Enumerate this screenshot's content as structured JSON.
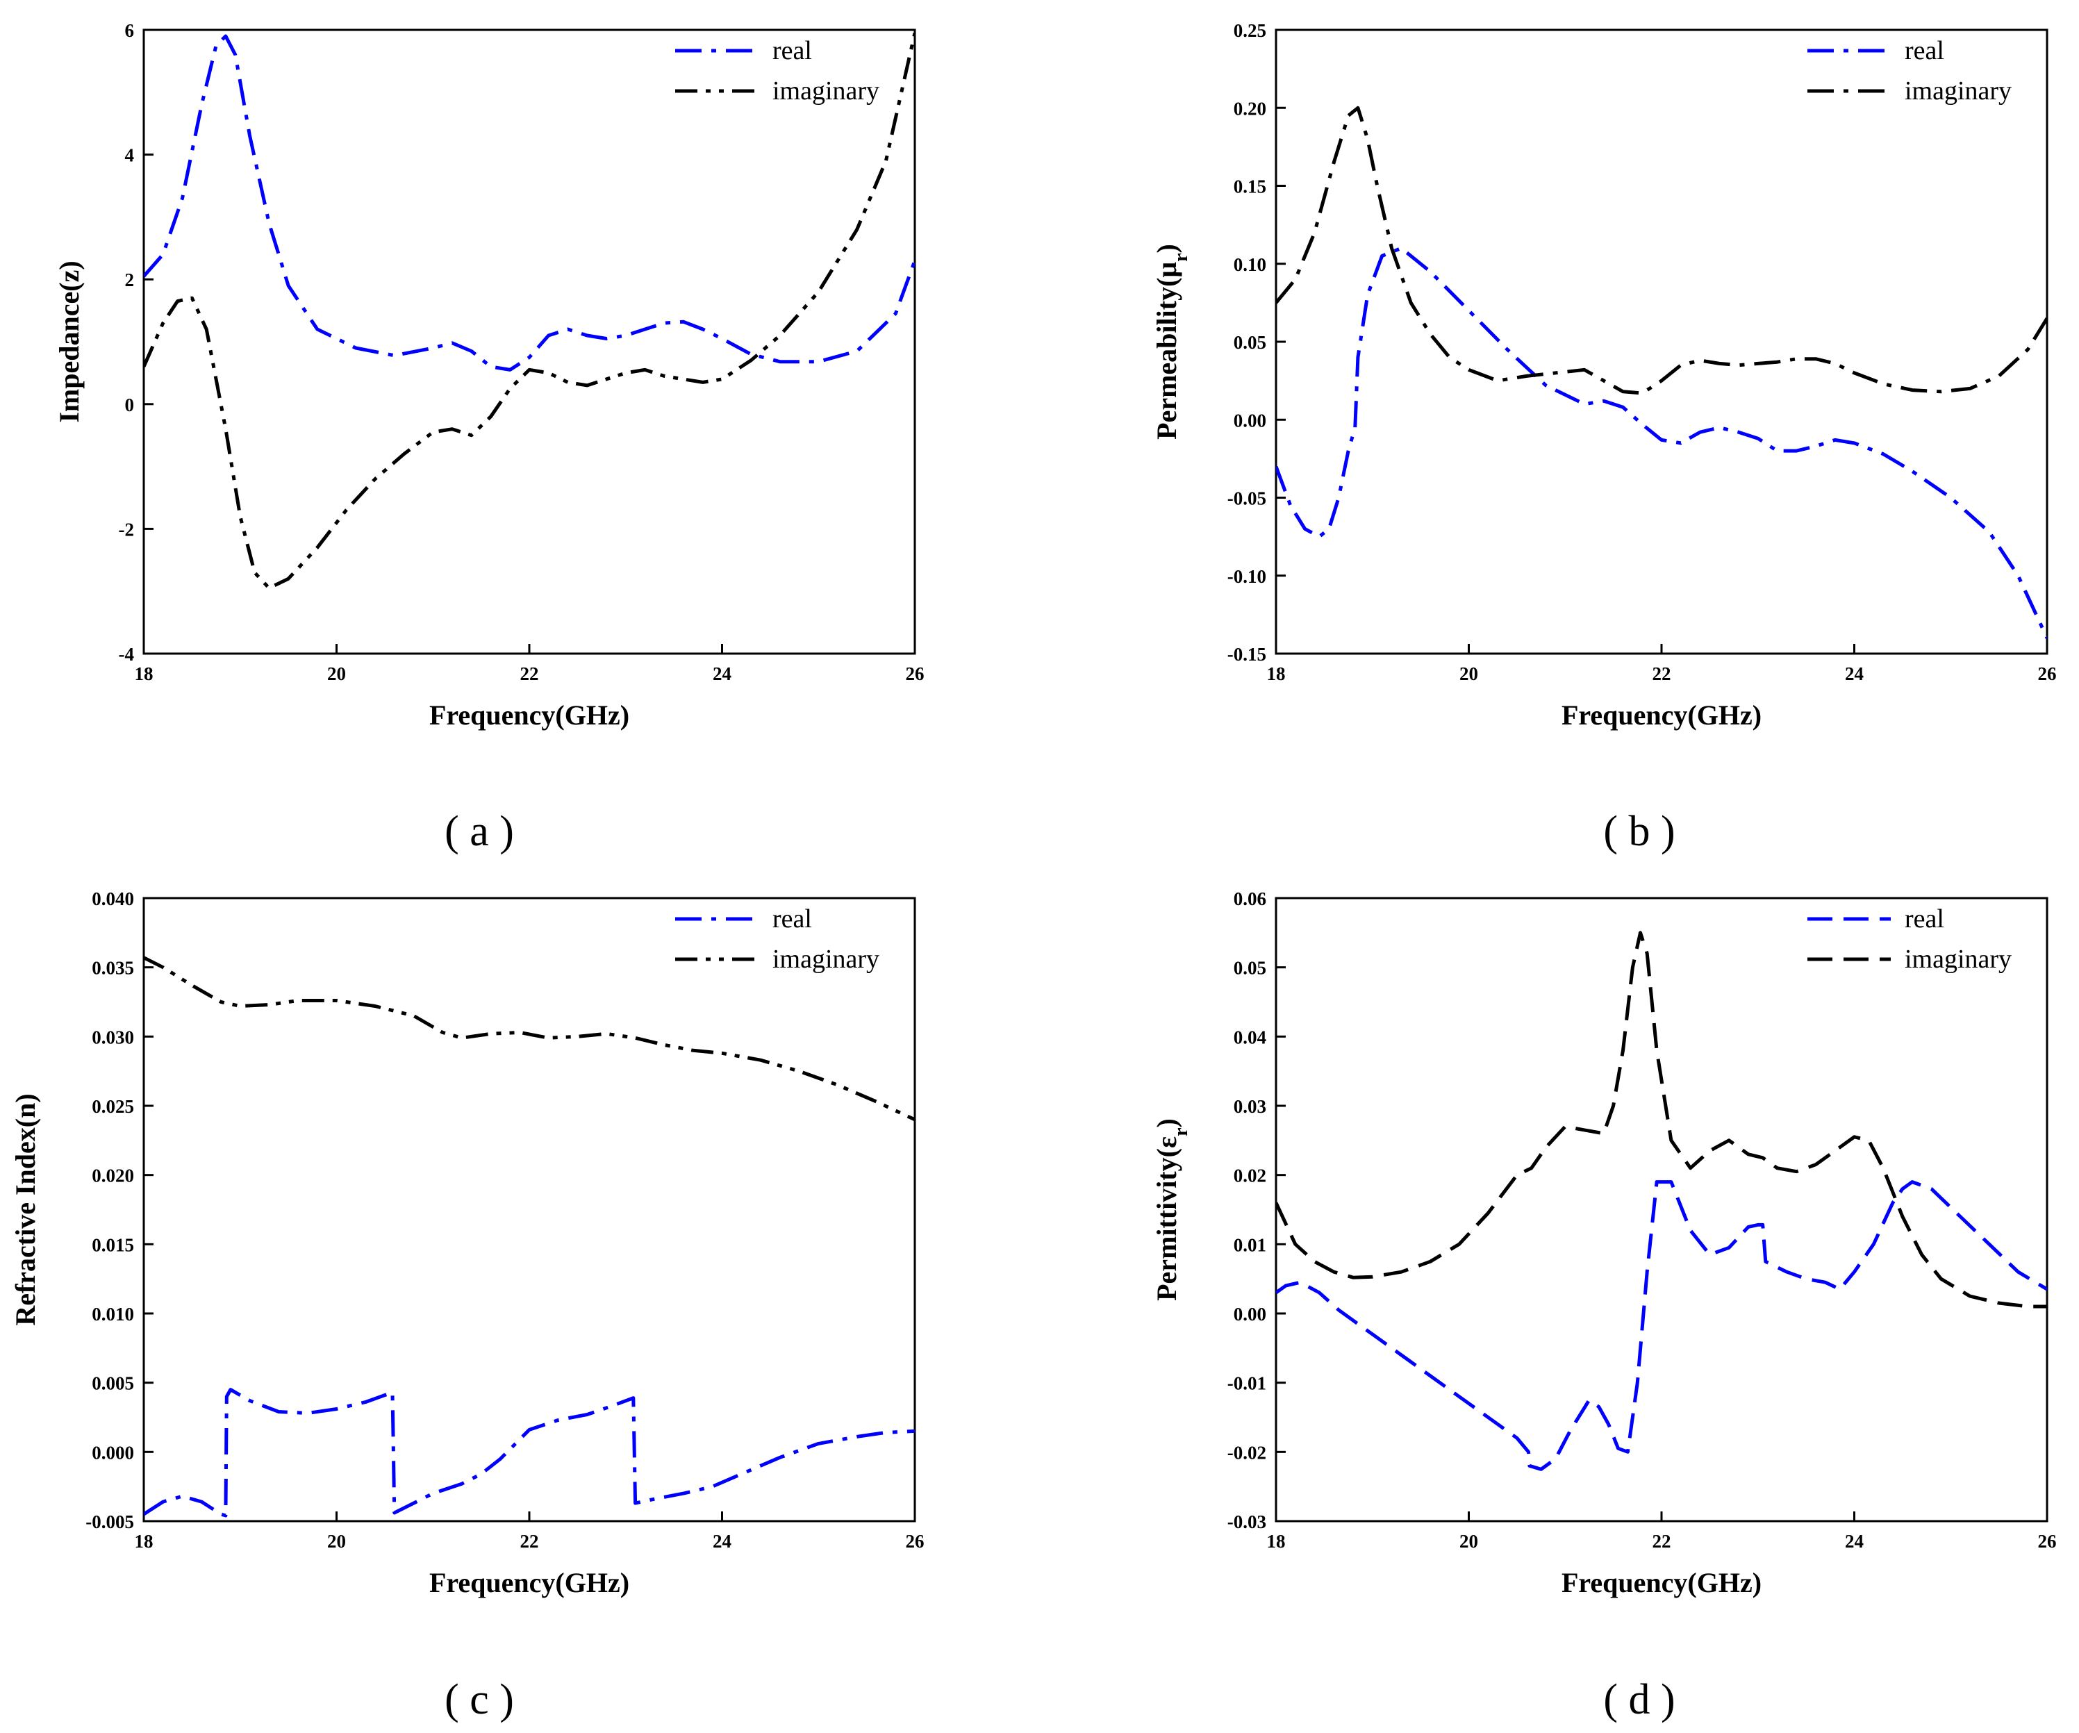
{
  "chart_data": [
    {
      "type": "line",
      "panel": "a",
      "caption": "( a )",
      "xlabel": "Frequency(GHz)",
      "ylabel": "Impedance(z)",
      "xlim": [
        18,
        26
      ],
      "ylim": [
        -4,
        6
      ],
      "xticks": [
        18,
        20,
        22,
        24,
        26
      ],
      "xtick_labels": [
        "18",
        "20",
        "22",
        "24",
        "26"
      ],
      "yticks": [
        -4,
        -2,
        0,
        2,
        4,
        6
      ],
      "ytick_labels": [
        "-4",
        "-2",
        "0",
        "2",
        "4",
        "6"
      ],
      "legend": "top-right",
      "series": [
        {
          "name": "real",
          "color": "#0000ff",
          "dash": "dashdot",
          "x": [
            18.0,
            18.2,
            18.4,
            18.6,
            18.75,
            18.85,
            18.95,
            19.1,
            19.3,
            19.5,
            19.8,
            20.2,
            20.6,
            21.0,
            21.2,
            21.4,
            21.6,
            21.8,
            22.0,
            22.2,
            22.4,
            22.6,
            22.8,
            23.0,
            23.2,
            23.4,
            23.6,
            23.8,
            24.0,
            24.3,
            24.6,
            25.0,
            25.4,
            25.8,
            26.0
          ],
          "y": [
            2.05,
            2.4,
            3.3,
            4.8,
            5.75,
            5.9,
            5.6,
            4.3,
            2.9,
            1.9,
            1.2,
            0.9,
            0.78,
            0.9,
            0.98,
            0.85,
            0.6,
            0.55,
            0.75,
            1.1,
            1.2,
            1.1,
            1.05,
            1.1,
            1.2,
            1.3,
            1.32,
            1.2,
            1.05,
            0.8,
            0.68,
            0.68,
            0.85,
            1.45,
            2.3
          ]
        },
        {
          "name": "imaginary",
          "color": "#000000",
          "dash": "dashdotdot",
          "x": [
            18.0,
            18.2,
            18.35,
            18.5,
            18.65,
            18.85,
            19.0,
            19.15,
            19.3,
            19.5,
            19.8,
            20.1,
            20.4,
            20.7,
            21.0,
            21.2,
            21.4,
            21.6,
            21.8,
            22.0,
            22.2,
            22.4,
            22.6,
            22.8,
            23.0,
            23.2,
            23.4,
            23.6,
            23.8,
            24.0,
            24.3,
            24.6,
            25.0,
            25.4,
            25.7,
            26.0
          ],
          "y": [
            0.6,
            1.3,
            1.65,
            1.7,
            1.2,
            -0.4,
            -1.8,
            -2.7,
            -2.95,
            -2.8,
            -2.3,
            -1.7,
            -1.2,
            -0.8,
            -0.45,
            -0.4,
            -0.5,
            -0.2,
            0.25,
            0.55,
            0.5,
            0.35,
            0.3,
            0.4,
            0.5,
            0.55,
            0.45,
            0.4,
            0.35,
            0.4,
            0.7,
            1.1,
            1.8,
            2.8,
            3.9,
            5.95
          ]
        }
      ]
    },
    {
      "type": "line",
      "panel": "b",
      "caption": "( b )",
      "xlabel": "Frequency(GHz)",
      "ylabel": "Permeability(μ",
      "ylabel_sub": "r",
      "ylabel_close": ")",
      "xlim": [
        18,
        26
      ],
      "ylim": [
        -0.15,
        0.25
      ],
      "xticks": [
        18,
        20,
        22,
        24,
        26
      ],
      "xtick_labels": [
        "18",
        "20",
        "22",
        "24",
        "26"
      ],
      "yticks": [
        -0.15,
        -0.1,
        -0.05,
        0.0,
        0.05,
        0.1,
        0.15,
        0.2,
        0.25
      ],
      "ytick_labels": [
        "-0.15",
        "-0.10",
        "-0.05",
        "0.00",
        "0.05",
        "0.10",
        "0.15",
        "0.20",
        "0.25"
      ],
      "legend": "top-right",
      "series": [
        {
          "name": "real",
          "color": "#0000ff",
          "dash": "dashdot",
          "x": [
            18.0,
            18.15,
            18.3,
            18.45,
            18.55,
            18.65,
            18.75,
            18.82,
            18.85,
            18.95,
            19.1,
            19.3,
            19.6,
            20.0,
            20.4,
            20.8,
            21.2,
            21.4,
            21.6,
            21.8,
            22.0,
            22.2,
            22.4,
            22.6,
            22.8,
            23.0,
            23.2,
            23.4,
            23.6,
            23.8,
            24.0,
            24.3,
            24.6,
            25.0,
            25.4,
            25.7,
            26.0
          ],
          "y": [
            -0.03,
            -0.055,
            -0.07,
            -0.075,
            -0.07,
            -0.05,
            -0.02,
            -0.005,
            0.04,
            0.08,
            0.105,
            0.11,
            0.095,
            0.07,
            0.045,
            0.022,
            0.01,
            0.012,
            0.008,
            -0.003,
            -0.013,
            -0.015,
            -0.008,
            -0.005,
            -0.008,
            -0.012,
            -0.02,
            -0.02,
            -0.017,
            -0.013,
            -0.015,
            -0.022,
            -0.033,
            -0.05,
            -0.072,
            -0.1,
            -0.14
          ]
        },
        {
          "name": "imaginary",
          "color": "#000000",
          "dash": "dashdot",
          "x": [
            18.0,
            18.2,
            18.4,
            18.6,
            18.75,
            18.85,
            18.95,
            19.05,
            19.2,
            19.4,
            19.6,
            19.8,
            20.0,
            20.3,
            20.6,
            20.9,
            21.2,
            21.4,
            21.6,
            21.8,
            22.0,
            22.2,
            22.4,
            22.6,
            22.8,
            23.0,
            23.2,
            23.4,
            23.6,
            23.8,
            24.0,
            24.3,
            24.6,
            24.9,
            25.2,
            25.5,
            25.8,
            26.0
          ],
          "y": [
            0.075,
            0.09,
            0.12,
            0.165,
            0.195,
            0.2,
            0.18,
            0.15,
            0.11,
            0.075,
            0.055,
            0.04,
            0.032,
            0.025,
            0.028,
            0.03,
            0.032,
            0.025,
            0.018,
            0.017,
            0.025,
            0.035,
            0.038,
            0.036,
            0.035,
            0.036,
            0.037,
            0.039,
            0.039,
            0.036,
            0.03,
            0.023,
            0.019,
            0.018,
            0.02,
            0.028,
            0.045,
            0.065
          ]
        }
      ]
    },
    {
      "type": "line",
      "panel": "c",
      "caption": "( c )",
      "xlabel": "Frequency(GHz)",
      "ylabel": "Refractive Index(n)",
      "xlim": [
        18,
        26
      ],
      "ylim": [
        -0.005,
        0.04
      ],
      "xticks": [
        18,
        20,
        22,
        24,
        26
      ],
      "xtick_labels": [
        "18",
        "20",
        "22",
        "24",
        "26"
      ],
      "yticks": [
        -0.005,
        0.0,
        0.005,
        0.01,
        0.015,
        0.02,
        0.025,
        0.03,
        0.035,
        0.04
      ],
      "ytick_labels": [
        "-0.005",
        "0.000",
        "0.005",
        "0.010",
        "0.015",
        "0.020",
        "0.025",
        "0.030",
        "0.035",
        "0.040"
      ],
      "legend": "top-right",
      "series": [
        {
          "name": "real",
          "color": "#0000ff",
          "dash": "dashdot",
          "x": [
            18.0,
            18.2,
            18.4,
            18.6,
            18.8,
            18.85,
            18.86,
            18.9,
            19.1,
            19.4,
            19.7,
            20.0,
            20.3,
            20.58,
            20.6,
            20.8,
            21.0,
            21.3,
            21.5,
            21.7,
            22.0,
            22.3,
            22.6,
            22.85,
            23.08,
            23.1,
            23.3,
            23.6,
            23.9,
            24.2,
            24.6,
            25.0,
            25.4,
            25.7,
            26.0
          ],
          "y": [
            -0.0045,
            -0.0036,
            -0.0032,
            -0.0036,
            -0.0045,
            -0.0046,
            0.004,
            0.0045,
            0.0037,
            0.0029,
            0.0028,
            0.0031,
            0.0036,
            0.0043,
            -0.0044,
            -0.0037,
            -0.003,
            -0.0023,
            -0.0016,
            -0.0005,
            0.0016,
            0.0023,
            0.0027,
            0.0033,
            0.0039,
            -0.0037,
            -0.0034,
            -0.003,
            -0.0025,
            -0.0016,
            -0.0004,
            0.0006,
            0.0011,
            0.0014,
            0.0015
          ]
        },
        {
          "name": "imaginary",
          "color": "#000000",
          "dash": "dashdotdot",
          "x": [
            18.0,
            18.2,
            18.5,
            18.8,
            19.0,
            19.3,
            19.6,
            20.0,
            20.4,
            20.8,
            21.1,
            21.3,
            21.6,
            21.9,
            22.2,
            22.5,
            22.8,
            23.1,
            23.4,
            23.7,
            24.0,
            24.4,
            24.8,
            25.2,
            25.6,
            26.0
          ],
          "y": [
            0.0357,
            0.035,
            0.0337,
            0.0325,
            0.0322,
            0.0323,
            0.0326,
            0.0326,
            0.0322,
            0.0315,
            0.0303,
            0.0299,
            0.0302,
            0.0303,
            0.0299,
            0.03,
            0.0302,
            0.0299,
            0.0294,
            0.029,
            0.0288,
            0.0283,
            0.0275,
            0.0265,
            0.0253,
            0.024
          ]
        }
      ]
    },
    {
      "type": "line",
      "panel": "d",
      "caption": "( d )",
      "xlabel": "Frequency(GHz)",
      "ylabel": "Permittivity(ε",
      "ylabel_sub": "r",
      "ylabel_close": ")",
      "xlim": [
        18,
        26
      ],
      "ylim": [
        -0.03,
        0.06
      ],
      "xticks": [
        18,
        20,
        22,
        24,
        26
      ],
      "xtick_labels": [
        "18",
        "20",
        "22",
        "24",
        "26"
      ],
      "yticks": [
        -0.03,
        -0.02,
        -0.01,
        0.0,
        0.01,
        0.02,
        0.03,
        0.04,
        0.05,
        0.06
      ],
      "ytick_labels": [
        "-0.03",
        "-0.02",
        "-0.01",
        "0.00",
        "0.01",
        "0.02",
        "0.03",
        "0.04",
        "0.05",
        "0.06"
      ],
      "legend": "top-right",
      "series": [
        {
          "name": "real",
          "color": "#0000ff",
          "dash": "dashed",
          "x": [
            18.0,
            18.1,
            18.25,
            18.45,
            18.65,
            18.85,
            19.0,
            19.3,
            19.6,
            19.9,
            20.2,
            20.5,
            20.62,
            20.63,
            20.75,
            20.9,
            21.05,
            21.25,
            21.35,
            21.45,
            21.55,
            21.65,
            21.75,
            21.85,
            21.95,
            22.1,
            22.3,
            22.5,
            22.7,
            22.9,
            23.0,
            23.05,
            23.08,
            23.3,
            23.5,
            23.7,
            23.85,
            24.0,
            24.2,
            24.4,
            24.5,
            24.6,
            24.8,
            25.1,
            25.4,
            25.7,
            26.0
          ],
          "y": [
            0.003,
            0.004,
            0.0045,
            0.003,
            0.0005,
            -0.0015,
            -0.003,
            -0.006,
            -0.009,
            -0.012,
            -0.015,
            -0.018,
            -0.02,
            -0.022,
            -0.0225,
            -0.021,
            -0.017,
            -0.0125,
            -0.0135,
            -0.016,
            -0.0195,
            -0.02,
            -0.01,
            0.006,
            0.019,
            0.019,
            0.012,
            0.0085,
            0.0095,
            0.0125,
            0.0128,
            0.0128,
            0.0075,
            0.006,
            0.005,
            0.0045,
            0.0035,
            0.006,
            0.01,
            0.016,
            0.018,
            0.019,
            0.018,
            0.014,
            0.01,
            0.006,
            0.0035
          ]
        },
        {
          "name": "imaginary",
          "color": "#000000",
          "dash": "dashed",
          "x": [
            18.0,
            18.2,
            18.4,
            18.6,
            18.8,
            19.0,
            19.3,
            19.6,
            19.9,
            20.2,
            20.5,
            20.65,
            20.8,
            21.0,
            21.2,
            21.4,
            21.5,
            21.6,
            21.7,
            21.78,
            21.85,
            21.95,
            22.1,
            22.3,
            22.5,
            22.7,
            22.9,
            23.05,
            23.2,
            23.4,
            23.6,
            23.8,
            24.0,
            24.15,
            24.3,
            24.5,
            24.7,
            24.9,
            25.2,
            25.5,
            25.8,
            26.0
          ],
          "y": [
            0.016,
            0.01,
            0.0075,
            0.006,
            0.0052,
            0.0053,
            0.006,
            0.0075,
            0.01,
            0.0145,
            0.02,
            0.021,
            0.024,
            0.027,
            0.0265,
            0.026,
            0.03,
            0.038,
            0.05,
            0.055,
            0.052,
            0.038,
            0.025,
            0.021,
            0.0235,
            0.025,
            0.023,
            0.0225,
            0.021,
            0.0205,
            0.0215,
            0.0235,
            0.0255,
            0.025,
            0.021,
            0.014,
            0.0085,
            0.005,
            0.0025,
            0.0015,
            0.001,
            0.001
          ]
        }
      ]
    }
  ]
}
